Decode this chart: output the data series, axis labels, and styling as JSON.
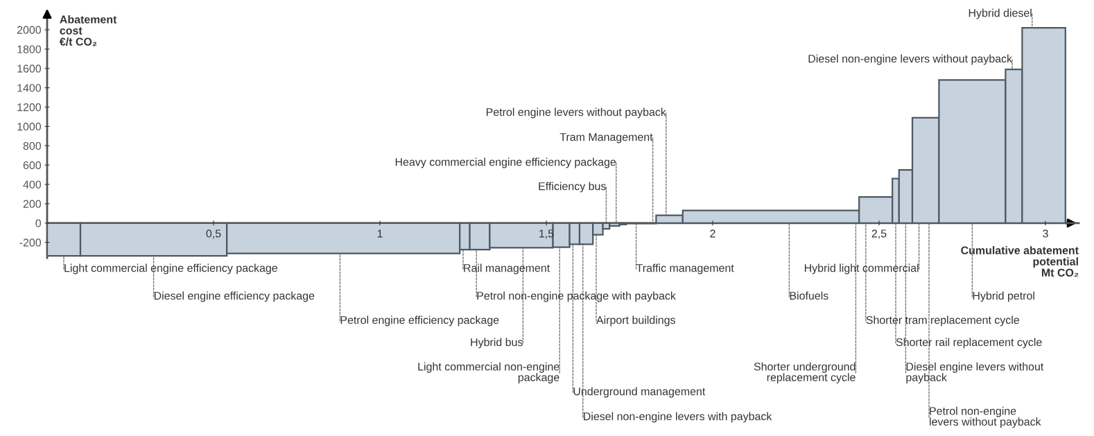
{
  "chart_data": {
    "type": "histogram",
    "ylabel": "Abatement\ncost\n€/t CO₂",
    "xlabel": "Cumulative abatement\npotential\nMt CO₂",
    "bins": [
      0,
      0.1,
      0.54,
      1.24,
      1.27,
      1.33,
      1.52,
      1.57,
      1.6,
      1.64,
      1.67,
      1.69,
      1.72,
      1.74,
      1.83,
      1.91,
      2.44,
      2.54,
      2.56,
      2.6,
      2.68,
      2.88,
      2.93,
      3.06
    ],
    "values": [
      -340,
      -340,
      -315,
      -275,
      -275,
      -255,
      -250,
      -220,
      -220,
      -120,
      -60,
      -30,
      -15,
      -5,
      80,
      130,
      270,
      460,
      550,
      1090,
      1480,
      1590,
      2020
    ],
    "color": "#c6d3df",
    "xlim": [
      0,
      3.1
    ],
    "ylim": [
      -360,
      2150
    ],
    "xticks": [
      {
        "value": 0.5,
        "label": "0,5"
      },
      1,
      {
        "value": 1.5,
        "label": "1,5"
      },
      2,
      {
        "value": 2.5,
        "label": "2,5"
      },
      3
    ],
    "yticks": [
      -200,
      0,
      200,
      400,
      600,
      800,
      1000,
      1200,
      1400,
      1600,
      1800,
      2000
    ],
    "grid": false,
    "legend": false,
    "annotations": [
      {
        "text": "Light commercial engine efficiency package",
        "x": 0.05,
        "y": -340
      },
      {
        "text": "Diesel engine efficiency package",
        "x": 0.32,
        "y": -340
      },
      {
        "text": "Petrol engine efficiency package",
        "x": 0.88,
        "y": -315
      },
      {
        "text": "Rail management",
        "x": 1.25,
        "y": -275
      },
      {
        "text": "Hybrid bus",
        "x": 1.43,
        "y": -255
      },
      {
        "text": "Petrol non-engine package with payback",
        "x": 1.29,
        "y": -275
      },
      {
        "text": "Light commercial non-engine\npackage",
        "x": 1.54,
        "y": -250
      },
      {
        "text": "Airport buildings",
        "x": 1.65,
        "y": -120
      },
      {
        "text": "Underground management",
        "x": 1.58,
        "y": -220
      },
      {
        "text": "Diesel non-engine levers with payback",
        "x": 1.61,
        "y": -220
      },
      {
        "text": "Efficiency bus",
        "x": 1.68,
        "y": -60
      },
      {
        "text": "Heavy commercial engine efficiency package",
        "x": 1.71,
        "y": -30
      },
      {
        "text": "Tram Management",
        "x": 1.82,
        "y": -5
      },
      {
        "text": "Petrol engine levers without payback",
        "x": 1.86,
        "y": 80
      },
      {
        "text": "Traffic management",
        "x": 1.77,
        "y": -5
      },
      {
        "text": "Biofuels",
        "x": 2.23,
        "y": 130
      },
      {
        "text": "Shorter underground\nreplacement cycle",
        "x": 2.43,
        "y": 130
      },
      {
        "text": "Shorter tram replacement cycle",
        "x": 2.46,
        "y": 270
      },
      {
        "text": "Hybrid light commercial",
        "x": 2.62,
        "y": 1090
      },
      {
        "text": "Hybrid petrol",
        "x": 2.78,
        "y": 1480
      },
      {
        "text": "Shorter rail replacement cycle",
        "x": 2.55,
        "y": 460
      },
      {
        "text": "Diesel engine levers without\npayback",
        "x": 2.58,
        "y": 550
      },
      {
        "text": "Petrol non-engine\nlevers without payback",
        "x": 2.65,
        "y": 1090
      },
      {
        "text": "Diesel non-engine levers without payback",
        "x": 2.9,
        "y": 1590
      },
      {
        "text": "Hybrid diesel",
        "x": 2.96,
        "y": 2020
      }
    ]
  }
}
